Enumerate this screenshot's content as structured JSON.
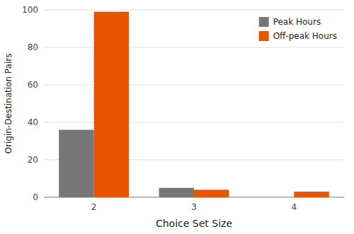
{
  "chart_data": {
    "type": "bar",
    "xlabel": "Choice Set Size",
    "ylabel": "Origin-Destination Pairs",
    "categories": [
      "2",
      "3",
      "4"
    ],
    "series": [
      {
        "name": "Peak Hours",
        "color": "#777777",
        "values": [
          36,
          5,
          0
        ]
      },
      {
        "name": "Off-peak Hours",
        "color": "#e85500",
        "values": [
          99,
          4,
          3
        ]
      }
    ],
    "ylim": [
      0,
      100
    ],
    "yticks": [
      0,
      20,
      40,
      60,
      80,
      100
    ],
    "grid": true,
    "legend": "upper right"
  }
}
